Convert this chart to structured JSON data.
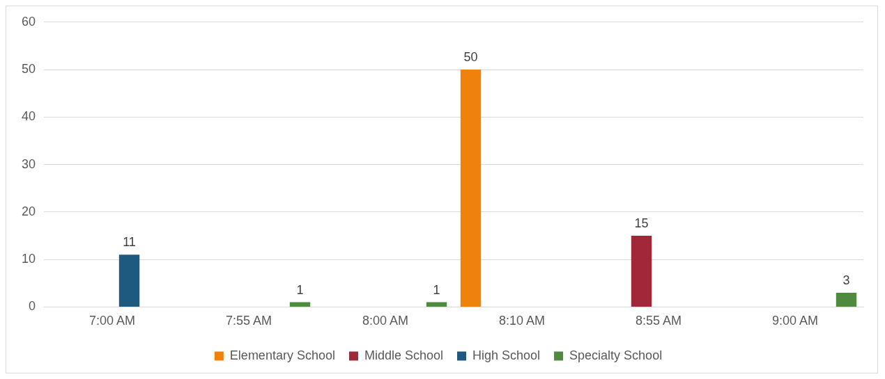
{
  "chart_data": {
    "type": "bar",
    "categories": [
      "7:00 AM",
      "7:55 AM",
      "8:00 AM",
      "8:10 AM",
      "8:55 AM",
      "9:00 AM"
    ],
    "series": [
      {
        "name": "Elementary School",
        "color": "#ee820d",
        "values": [
          null,
          null,
          null,
          50,
          null,
          null
        ]
      },
      {
        "name": "Middle School",
        "color": "#a02838",
        "values": [
          null,
          null,
          null,
          null,
          15,
          null
        ]
      },
      {
        "name": "High School",
        "color": "#1e5a80",
        "values": [
          11,
          null,
          null,
          null,
          null,
          null
        ]
      },
      {
        "name": "Specialty School",
        "color": "#4e8b3f",
        "values": [
          null,
          1,
          1,
          null,
          null,
          3
        ]
      }
    ],
    "ylim": [
      0,
      60
    ],
    "yticks": [
      0,
      10,
      20,
      30,
      40,
      50,
      60
    ],
    "grid": "y",
    "legend": "bottom",
    "data_labels": true
  }
}
